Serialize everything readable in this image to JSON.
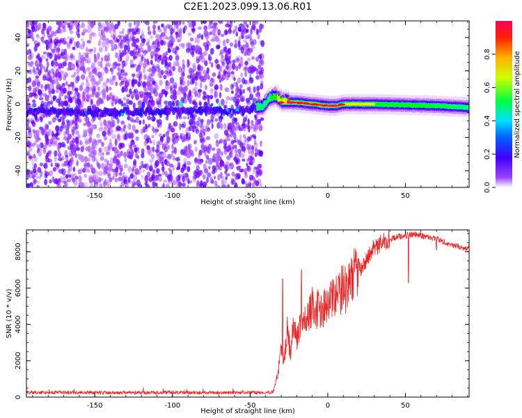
{
  "title": "C2E1.2023.099.13.06.R01",
  "chart_data": [
    {
      "type": "heatmap",
      "xlabel": "Height of straight line (km)",
      "ylabel": "Frequency (Hz)",
      "xlim": [
        -194,
        91
      ],
      "ylim": [
        -50,
        50
      ],
      "xticks": [
        -150,
        -100,
        -50,
        0,
        50
      ],
      "xtick_labels": [
        "-150",
        "-100",
        "-50",
        "0",
        "50"
      ],
      "yticks": [
        -40,
        -20,
        0,
        20,
        40
      ],
      "ytick_labels": [
        "-40",
        "-20",
        "0",
        "20",
        "40"
      ],
      "colorbar": {
        "label": "Normalized spectral amplitude",
        "range": [
          0,
          1
        ],
        "ticks": [
          0.0,
          0.2,
          0.4,
          0.6,
          0.8
        ],
        "tick_labels": [
          "0.0",
          "0.2",
          "0.4",
          "0.6",
          "0.8"
        ],
        "colormap": "rainbow",
        "colors": [
          "#ffffff",
          "#8000ff",
          "#0000ff",
          "#00ffff",
          "#00ff00",
          "#ffff00",
          "#ff8000",
          "#ff0000",
          "#ff0080"
        ]
      },
      "noise_region_x": [
        -194,
        -42
      ],
      "signal_ridge": [
        {
          "x": -194,
          "y": -5
        },
        {
          "x": -180,
          "y": -4
        },
        {
          "x": -160,
          "y": -5
        },
        {
          "x": -140,
          "y": -5
        },
        {
          "x": -100,
          "y": -4
        },
        {
          "x": -60,
          "y": -4
        },
        {
          "x": -42,
          "y": -2
        },
        {
          "x": -38,
          "y": 3
        },
        {
          "x": -34,
          "y": 4
        },
        {
          "x": -30,
          "y": 1
        },
        {
          "x": -20,
          "y": 1
        },
        {
          "x": -10,
          "y": 0
        },
        {
          "x": 0,
          "y": -1
        },
        {
          "x": 5,
          "y": -1
        },
        {
          "x": 10,
          "y": 0
        },
        {
          "x": 30,
          "y": 0
        },
        {
          "x": 50,
          "y": -0.5
        },
        {
          "x": 70,
          "y": -1
        },
        {
          "x": 91,
          "y": -2
        }
      ],
      "ridge_peak_amplitude": [
        {
          "x": -38,
          "amp": 0.45
        },
        {
          "x": -25,
          "amp": 0.85
        },
        {
          "x": -15,
          "amp": 0.9
        },
        {
          "x": -5,
          "amp": 0.95
        },
        {
          "x": 5,
          "amp": 0.9
        },
        {
          "x": 15,
          "amp": 0.7
        },
        {
          "x": 30,
          "amp": 0.6
        },
        {
          "x": 60,
          "amp": 0.5
        },
        {
          "x": 91,
          "amp": 0.45
        }
      ]
    },
    {
      "type": "line",
      "xlabel": "Height of straight line (km)",
      "ylabel": "SNR (10 * v/v)",
      "xlim": [
        -194,
        91
      ],
      "ylim": [
        0,
        9200
      ],
      "xticks": [
        -150,
        -100,
        -50,
        0,
        50
      ],
      "xtick_labels": [
        "-150",
        "-100",
        "-50",
        "0",
        "50"
      ],
      "yticks": [
        0,
        2000,
        4000,
        6000,
        8000
      ],
      "ytick_labels": [
        "0",
        "2000",
        "4000",
        "6000",
        "8000"
      ],
      "color": "#ee2222",
      "series": [
        {
          "x": [
            -194,
            -170,
            -140,
            -110,
            -80,
            -50,
            -40,
            -35,
            -32,
            -30,
            -28,
            -26,
            -24,
            -22,
            -20,
            -18,
            -16,
            -14,
            -12,
            -10,
            -8,
            -6,
            -4,
            -2,
            0,
            2,
            4,
            6,
            8,
            10,
            12,
            15,
            18,
            20,
            22,
            25,
            28,
            30,
            32,
            35,
            38,
            40,
            45,
            50,
            55,
            60,
            65,
            70,
            75,
            80,
            85,
            91
          ],
          "y": [
            250,
            260,
            240,
            250,
            240,
            250,
            240,
            300,
            1400,
            2600,
            2100,
            3800,
            2400,
            4000,
            3200,
            3800,
            4400,
            4000,
            4600,
            5000,
            4200,
            5200,
            4600,
            5000,
            4800,
            5400,
            5300,
            5800,
            5600,
            6200,
            5800,
            6600,
            6800,
            7200,
            7000,
            7600,
            8000,
            8200,
            8300,
            8500,
            8600,
            8700,
            8800,
            8900,
            8950,
            8900,
            8800,
            8700,
            8550,
            8400,
            8250,
            8150
          ]
        }
      ],
      "spikes": [
        {
          "x": -29,
          "y": 6500
        },
        {
          "x": -17,
          "y": 7000
        },
        {
          "x": 9,
          "y": 7200
        },
        {
          "x": 20,
          "y": 7600
        },
        {
          "x": 37,
          "y": 8700
        },
        {
          "x": 52,
          "y": 6300
        },
        {
          "x": 70,
          "y": 8100
        }
      ],
      "noise_floor": 250
    }
  ]
}
